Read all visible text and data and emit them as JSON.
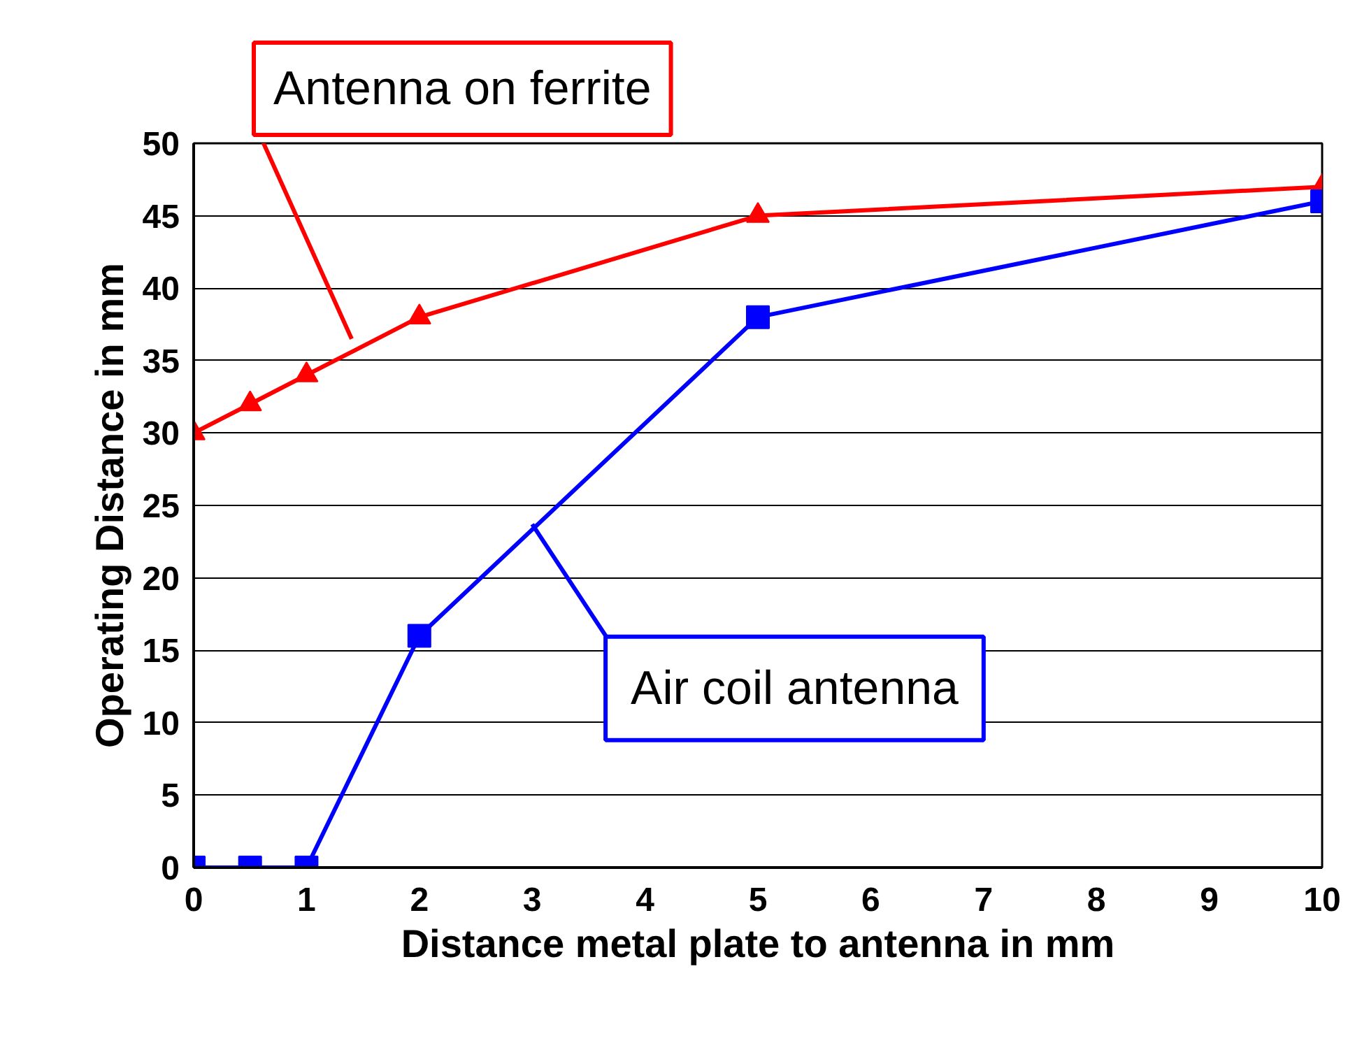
{
  "chart_data": {
    "type": "line",
    "xlabel": "Distance metal plate to antenna in mm",
    "ylabel": "Operating Distance in mm",
    "xlim": [
      0,
      10
    ],
    "xticks": [
      0,
      1,
      2,
      3,
      4,
      5,
      6,
      7,
      8,
      9,
      10
    ],
    "ylim": [
      0,
      50
    ],
    "yticks": [
      0,
      5,
      10,
      15,
      20,
      25,
      30,
      35,
      40,
      45,
      50
    ],
    "grid": "y",
    "series": [
      {
        "name": "Antenna on ferrite",
        "color": "#ff0000",
        "marker": "triangle",
        "x": [
          0,
          0.5,
          1,
          2,
          5,
          10
        ],
        "values": [
          30,
          32,
          34,
          38,
          45,
          47
        ]
      },
      {
        "name": "Air coil antenna",
        "color": "#0000ff",
        "marker": "square",
        "x": [
          0,
          0.5,
          1,
          2,
          5,
          10
        ],
        "values": [
          0,
          0,
          0,
          16,
          38,
          46
        ]
      }
    ]
  }
}
